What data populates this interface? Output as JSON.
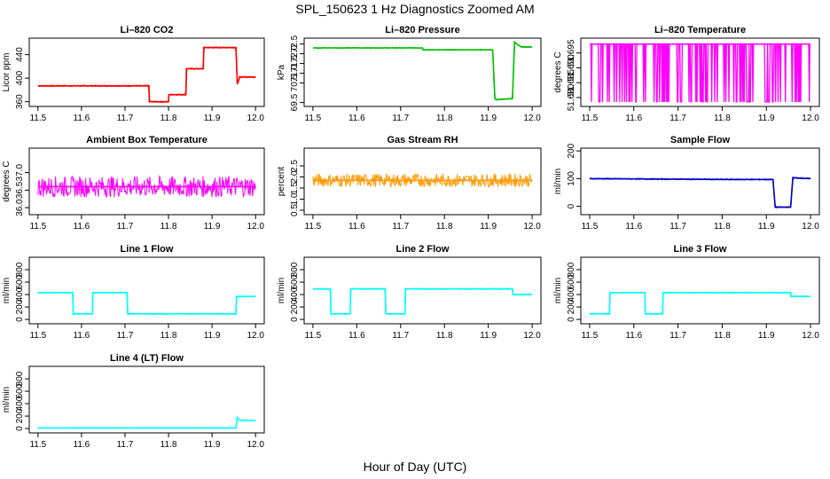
{
  "figure": {
    "title": "SPL_150623  1 Hz Diagnostics Zoomed AM",
    "xlabel": "Hour of Day (UTC)"
  },
  "chart_data": [
    {
      "type": "line",
      "title": "Li–820 CO2",
      "ylabel": "Licor ppm",
      "color": "#ff0000",
      "xlim": [
        11.48,
        12.02
      ],
      "xticks": [
        11.5,
        11.6,
        11.7,
        11.8,
        11.9,
        12.0
      ],
      "ylim": [
        352,
        468
      ],
      "yticks": [
        360,
        400,
        440
      ],
      "series": [
        {
          "x": [
            11.5,
            11.755,
            11.756,
            11.8,
            11.801,
            11.84,
            11.841,
            11.88,
            11.881,
            11.955,
            11.958,
            11.962,
            11.963,
            12.0
          ],
          "y": [
            387,
            387,
            360,
            360,
            372,
            372,
            416,
            416,
            452,
            452,
            390,
            398,
            402,
            402
          ]
        }
      ],
      "noise": 1.0
    },
    {
      "type": "line",
      "title": "Li–820 Pressure",
      "ylabel": "kPa",
      "color": "#00c000",
      "xlim": [
        11.48,
        12.02
      ],
      "xticks": [
        11.5,
        11.6,
        11.7,
        11.8,
        11.9,
        12.0
      ],
      "ylim": [
        69.3,
        72.8
      ],
      "yticks": [
        69.5,
        70.5,
        71.0,
        71.5,
        72.0,
        72.5
      ],
      "series": [
        {
          "x": [
            11.5,
            11.75,
            11.751,
            11.91,
            11.915,
            11.918,
            11.955,
            11.96,
            11.965,
            11.975,
            12.0
          ],
          "y": [
            72.3,
            72.3,
            72.2,
            72.2,
            69.7,
            69.65,
            69.7,
            72.6,
            72.5,
            72.35,
            72.35
          ]
        }
      ],
      "noise": 0.02
    },
    {
      "type": "line",
      "title": "Li–820 Temperature",
      "ylabel": "degrees C",
      "color": "#ff00ff",
      "xlim": [
        11.48,
        12.02
      ],
      "xticks": [
        11.5,
        11.6,
        11.7,
        11.8,
        11.9,
        12.0
      ],
      "ylim": [
        51.677,
        51.7
      ],
      "yticks": [
        51.68,
        51.685,
        51.69,
        51.695
      ],
      "series": [
        {
          "x": [
            11.5,
            12.0
          ],
          "y": [
            51.698,
            51.698
          ]
        }
      ],
      "dips_to": 51.6785
    },
    {
      "type": "line",
      "title": "Ambient Box Temperature",
      "ylabel": "degrees C",
      "color": "#ff00ff",
      "xlim": [
        11.48,
        12.02
      ],
      "xticks": [
        11.5,
        11.6,
        11.7,
        11.8,
        11.9,
        12.0
      ],
      "ylim": [
        35.8,
        37.7
      ],
      "yticks": [
        36.0,
        36.5,
        37.0
      ],
      "series": [
        {
          "x": [
            11.5,
            12.0
          ],
          "y": [
            36.6,
            36.6
          ]
        }
      ],
      "noise": 0.3
    },
    {
      "type": "line",
      "title": "Gas Stream RH",
      "ylabel": "percent",
      "color": "#ff9900",
      "xlim": [
        11.48,
        12.02
      ],
      "xticks": [
        11.5,
        11.6,
        11.7,
        11.8,
        11.9,
        12.0
      ],
      "ylim": [
        0.3,
        3.3
      ],
      "yticks": [
        0.5,
        1.0,
        1.5,
        2.0,
        2.5
      ],
      "series": [
        {
          "x": [
            11.5,
            12.0
          ],
          "y": [
            1.85,
            1.85
          ]
        }
      ],
      "noise": 0.3
    },
    {
      "type": "line",
      "title": "Sample Flow",
      "ylabel": "ml/min",
      "color": "#0000cc",
      "xlim": [
        11.48,
        12.02
      ],
      "xticks": [
        11.5,
        11.6,
        11.7,
        11.8,
        11.9,
        12.0
      ],
      "ylim": [
        -30,
        210
      ],
      "yticks": [
        0,
        100,
        200
      ],
      "series": [
        {
          "x": [
            11.5,
            11.8,
            11.915,
            11.92,
            11.955,
            11.96,
            12.0
          ],
          "y": [
            100,
            97,
            97,
            -3,
            -3,
            103,
            100
          ]
        }
      ],
      "noise": 2
    },
    {
      "type": "line",
      "title": "Line 1 Flow",
      "ylabel": "ml/min",
      "color": "#00ffff",
      "xlim": [
        11.48,
        12.02
      ],
      "xticks": [
        11.5,
        11.6,
        11.7,
        11.8,
        11.9,
        12.0
      ],
      "ylim": [
        -70,
        1000
      ],
      "yticks": [
        0,
        200,
        400,
        600,
        800
      ],
      "series": [
        {
          "x": [
            11.5,
            11.58,
            11.581,
            11.625,
            11.626,
            11.705,
            11.706,
            11.955,
            11.956,
            12.0
          ],
          "y": [
            430,
            430,
            90,
            90,
            430,
            430,
            90,
            90,
            370,
            370
          ]
        }
      ],
      "noise": 8
    },
    {
      "type": "line",
      "title": "Line 2 Flow",
      "ylabel": "ml/min",
      "color": "#00ffff",
      "xlim": [
        11.48,
        12.02
      ],
      "xticks": [
        11.5,
        11.6,
        11.7,
        11.8,
        11.9,
        12.0
      ],
      "ylim": [
        -70,
        1000
      ],
      "yticks": [
        0,
        200,
        400,
        600,
        800
      ],
      "series": [
        {
          "x": [
            11.5,
            11.54,
            11.541,
            11.585,
            11.586,
            11.665,
            11.666,
            11.71,
            11.711,
            11.955,
            11.956,
            12.0
          ],
          "y": [
            490,
            490,
            90,
            90,
            490,
            490,
            90,
            90,
            490,
            490,
            400,
            400
          ]
        }
      ],
      "noise": 8
    },
    {
      "type": "line",
      "title": "Line 3 Flow",
      "ylabel": "ml/min",
      "color": "#00ffff",
      "xlim": [
        11.48,
        12.02
      ],
      "xticks": [
        11.5,
        11.6,
        11.7,
        11.8,
        11.9,
        12.0
      ],
      "ylim": [
        -70,
        1000
      ],
      "yticks": [
        0,
        200,
        400,
        600,
        800
      ],
      "series": [
        {
          "x": [
            11.5,
            11.545,
            11.546,
            11.625,
            11.626,
            11.665,
            11.666,
            11.955,
            11.956,
            12.0
          ],
          "y": [
            90,
            90,
            430,
            430,
            90,
            90,
            430,
            430,
            370,
            370
          ]
        }
      ],
      "noise": 8
    },
    {
      "type": "line",
      "title": "Line 4 (LT) Flow",
      "ylabel": "ml/min",
      "color": "#00ffff",
      "xlim": [
        11.48,
        12.02
      ],
      "xticks": [
        11.5,
        11.6,
        11.7,
        11.8,
        11.9,
        12.0
      ],
      "ylim": [
        -70,
        1000
      ],
      "yticks": [
        0,
        200,
        400,
        600,
        800
      ],
      "series": [
        {
          "x": [
            11.5,
            11.955,
            11.958,
            11.962,
            11.966,
            12.0
          ],
          "y": [
            10,
            10,
            180,
            140,
            130,
            130
          ]
        }
      ],
      "noise": 3
    }
  ]
}
